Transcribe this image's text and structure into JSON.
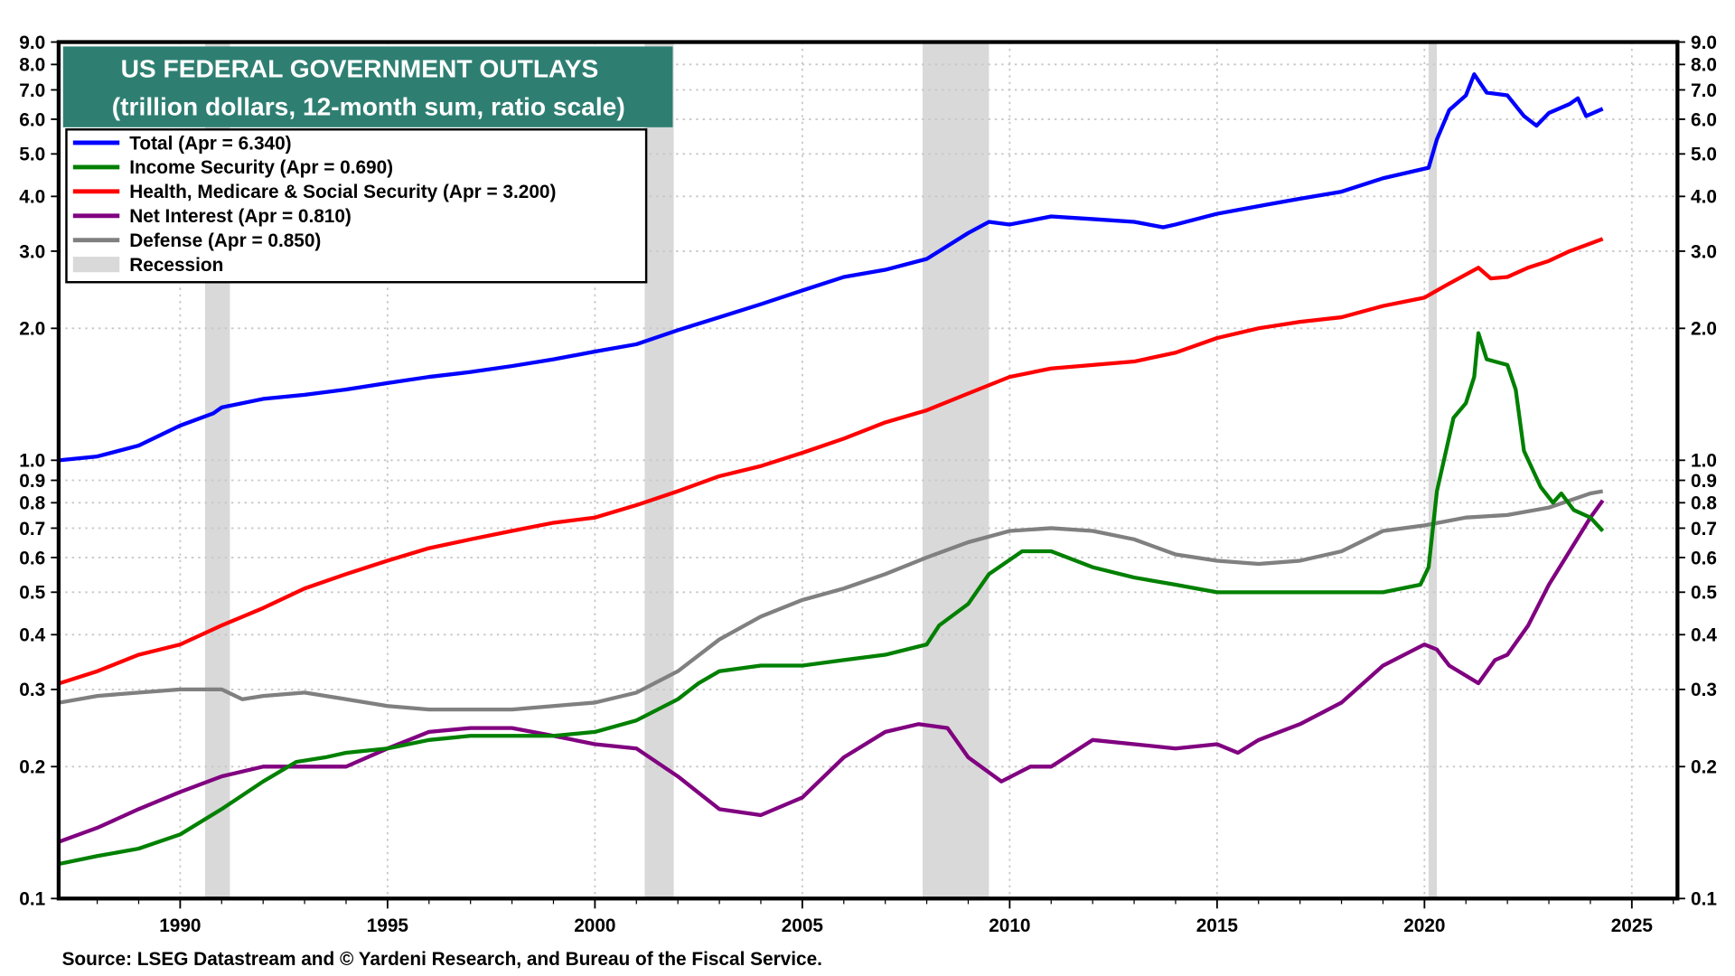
{
  "chart_data": {
    "type": "line",
    "title": "US FEDERAL GOVERNMENT OUTLAYS",
    "subtitle": "(trillion dollars, 12-month sum, ratio scale)",
    "source": "Source: LSEG Datastream and © Yardeni Research, and Bureau of the Fiscal Service.",
    "y_scale": "log",
    "ylim": [
      0.1,
      9.0
    ],
    "xlim": [
      1987.07,
      2026.1
    ],
    "grid": true,
    "legend_placement": "top-left",
    "y_ticks": [
      "9.0",
      "8.0",
      "7.0",
      "6.0",
      "5.0",
      "4.0",
      "3.0",
      "2.0",
      "1.0",
      "0.9",
      "0.8",
      "0.7",
      "0.6",
      "0.5",
      "0.4",
      "0.3",
      "0.2",
      "0.1"
    ],
    "y_tick_values": [
      9,
      8,
      7,
      6,
      5,
      4,
      3,
      2,
      1,
      0.9,
      0.8,
      0.7,
      0.6,
      0.5,
      0.4,
      0.3,
      0.2,
      0.1
    ],
    "x_ticks": [
      "1990",
      "1995",
      "2000",
      "2005",
      "2010",
      "2015",
      "2020",
      "2025"
    ],
    "x_tick_values": [
      1990,
      1995,
      2000,
      2005,
      2010,
      2015,
      2020,
      2025
    ],
    "recessions": [
      [
        1990.6,
        1991.2
      ],
      [
        2001.2,
        2001.9
      ],
      [
        2007.9,
        2009.5
      ],
      [
        2020.1,
        2020.3
      ]
    ],
    "recession_label": "Recession",
    "recession_color": "#d9d9d9",
    "series": [
      {
        "name": "Total  (Apr = 6.340)",
        "color": "#0000ff",
        "points": [
          [
            1987.1,
            1.0
          ],
          [
            1988,
            1.02
          ],
          [
            1989,
            1.08
          ],
          [
            1990,
            1.2
          ],
          [
            1990.8,
            1.28
          ],
          [
            1991,
            1.32
          ],
          [
            1992,
            1.38
          ],
          [
            1993,
            1.41
          ],
          [
            1994,
            1.45
          ],
          [
            1995,
            1.5
          ],
          [
            1996,
            1.55
          ],
          [
            1997,
            1.59
          ],
          [
            1998,
            1.64
          ],
          [
            1999,
            1.7
          ],
          [
            2000,
            1.77
          ],
          [
            2001,
            1.84
          ],
          [
            2002,
            1.98
          ],
          [
            2003,
            2.12
          ],
          [
            2004,
            2.27
          ],
          [
            2005,
            2.44
          ],
          [
            2006,
            2.62
          ],
          [
            2007,
            2.72
          ],
          [
            2008,
            2.88
          ],
          [
            2009,
            3.3
          ],
          [
            2009.5,
            3.5
          ],
          [
            2010,
            3.45
          ],
          [
            2011,
            3.6
          ],
          [
            2012,
            3.55
          ],
          [
            2013,
            3.5
          ],
          [
            2013.7,
            3.4
          ],
          [
            2014,
            3.45
          ],
          [
            2015,
            3.65
          ],
          [
            2016,
            3.8
          ],
          [
            2017,
            3.95
          ],
          [
            2018,
            4.1
          ],
          [
            2019,
            4.4
          ],
          [
            2020.1,
            4.65
          ],
          [
            2020.3,
            5.4
          ],
          [
            2020.6,
            6.3
          ],
          [
            2021.0,
            6.8
          ],
          [
            2021.2,
            7.6
          ],
          [
            2021.5,
            6.9
          ],
          [
            2022,
            6.8
          ],
          [
            2022.4,
            6.1
          ],
          [
            2022.7,
            5.8
          ],
          [
            2023,
            6.2
          ],
          [
            2023.5,
            6.5
          ],
          [
            2023.7,
            6.7
          ],
          [
            2023.9,
            6.1
          ],
          [
            2024.3,
            6.34
          ]
        ]
      },
      {
        "name": "Income Security (Apr = 0.690)",
        "color": "#008000",
        "points": [
          [
            1987.1,
            0.12
          ],
          [
            1988,
            0.125
          ],
          [
            1989,
            0.13
          ],
          [
            1990,
            0.14
          ],
          [
            1991,
            0.16
          ],
          [
            1992,
            0.185
          ],
          [
            1992.8,
            0.205
          ],
          [
            1993.5,
            0.21
          ],
          [
            1994,
            0.215
          ],
          [
            1995,
            0.22
          ],
          [
            1996,
            0.23
          ],
          [
            1997,
            0.235
          ],
          [
            1998,
            0.235
          ],
          [
            1999,
            0.235
          ],
          [
            2000,
            0.24
          ],
          [
            2001,
            0.255
          ],
          [
            2002,
            0.285
          ],
          [
            2002.5,
            0.31
          ],
          [
            2003,
            0.33
          ],
          [
            2004,
            0.34
          ],
          [
            2005,
            0.34
          ],
          [
            2006,
            0.35
          ],
          [
            2007,
            0.36
          ],
          [
            2008,
            0.38
          ],
          [
            2008.3,
            0.42
          ],
          [
            2009,
            0.47
          ],
          [
            2009.5,
            0.55
          ],
          [
            2010.3,
            0.62
          ],
          [
            2011,
            0.62
          ],
          [
            2012,
            0.57
          ],
          [
            2013,
            0.54
          ],
          [
            2014,
            0.52
          ],
          [
            2015,
            0.5
          ],
          [
            2016,
            0.5
          ],
          [
            2017,
            0.5
          ],
          [
            2018,
            0.5
          ],
          [
            2019,
            0.5
          ],
          [
            2019.9,
            0.52
          ],
          [
            2020.1,
            0.57
          ],
          [
            2020.3,
            0.85
          ],
          [
            2020.7,
            1.25
          ],
          [
            2021.0,
            1.35
          ],
          [
            2021.2,
            1.55
          ],
          [
            2021.3,
            1.95
          ],
          [
            2021.5,
            1.7
          ],
          [
            2022.0,
            1.65
          ],
          [
            2022.2,
            1.45
          ],
          [
            2022.4,
            1.05
          ],
          [
            2022.8,
            0.87
          ],
          [
            2023.1,
            0.8
          ],
          [
            2023.3,
            0.84
          ],
          [
            2023.6,
            0.77
          ],
          [
            2024.0,
            0.74
          ],
          [
            2024.3,
            0.69
          ]
        ]
      },
      {
        "name": "Health, Medicare & Social Security  (Apr = 3.200)",
        "color": "#ff0000",
        "points": [
          [
            1987.1,
            0.31
          ],
          [
            1988,
            0.33
          ],
          [
            1989,
            0.36
          ],
          [
            1990,
            0.38
          ],
          [
            1991,
            0.42
          ],
          [
            1992,
            0.46
          ],
          [
            1993,
            0.51
          ],
          [
            1994,
            0.55
          ],
          [
            1995,
            0.59
          ],
          [
            1996,
            0.63
          ],
          [
            1997,
            0.66
          ],
          [
            1998,
            0.69
          ],
          [
            1999,
            0.72
          ],
          [
            2000,
            0.74
          ],
          [
            2001,
            0.79
          ],
          [
            2002,
            0.85
          ],
          [
            2003,
            0.92
          ],
          [
            2004,
            0.97
          ],
          [
            2005,
            1.04
          ],
          [
            2006,
            1.12
          ],
          [
            2007,
            1.22
          ],
          [
            2008,
            1.3
          ],
          [
            2009,
            1.42
          ],
          [
            2010,
            1.55
          ],
          [
            2011,
            1.62
          ],
          [
            2012,
            1.65
          ],
          [
            2013,
            1.68
          ],
          [
            2014,
            1.76
          ],
          [
            2015,
            1.9
          ],
          [
            2016,
            2.0
          ],
          [
            2017,
            2.07
          ],
          [
            2018,
            2.12
          ],
          [
            2019,
            2.25
          ],
          [
            2020,
            2.35
          ],
          [
            2020.5,
            2.5
          ],
          [
            2021.3,
            2.75
          ],
          [
            2021.6,
            2.6
          ],
          [
            2022,
            2.62
          ],
          [
            2022.5,
            2.75
          ],
          [
            2023,
            2.85
          ],
          [
            2023.5,
            3.0
          ],
          [
            2024.3,
            3.2
          ]
        ]
      },
      {
        "name": "Net Interest (Apr = 0.810)",
        "color": "#800080",
        "points": [
          [
            1987.1,
            0.135
          ],
          [
            1988,
            0.145
          ],
          [
            1989,
            0.16
          ],
          [
            1990,
            0.175
          ],
          [
            1991,
            0.19
          ],
          [
            1992,
            0.2
          ],
          [
            1993,
            0.2
          ],
          [
            1994,
            0.2
          ],
          [
            1995,
            0.22
          ],
          [
            1996,
            0.24
          ],
          [
            1997,
            0.245
          ],
          [
            1998,
            0.245
          ],
          [
            1999,
            0.235
          ],
          [
            2000,
            0.225
          ],
          [
            2001,
            0.22
          ],
          [
            2002,
            0.19
          ],
          [
            2003,
            0.16
          ],
          [
            2004,
            0.155
          ],
          [
            2005,
            0.17
          ],
          [
            2006,
            0.21
          ],
          [
            2007,
            0.24
          ],
          [
            2007.8,
            0.25
          ],
          [
            2008.5,
            0.245
          ],
          [
            2009,
            0.21
          ],
          [
            2009.8,
            0.185
          ],
          [
            2010.5,
            0.2
          ],
          [
            2011,
            0.2
          ],
          [
            2012,
            0.23
          ],
          [
            2013,
            0.225
          ],
          [
            2014,
            0.22
          ],
          [
            2015,
            0.225
          ],
          [
            2015.5,
            0.215
          ],
          [
            2016,
            0.23
          ],
          [
            2017,
            0.25
          ],
          [
            2018,
            0.28
          ],
          [
            2019,
            0.34
          ],
          [
            2020,
            0.38
          ],
          [
            2020.3,
            0.37
          ],
          [
            2020.6,
            0.34
          ],
          [
            2021.3,
            0.31
          ],
          [
            2021.7,
            0.35
          ],
          [
            2022,
            0.36
          ],
          [
            2022.5,
            0.42
          ],
          [
            2023,
            0.52
          ],
          [
            2023.5,
            0.62
          ],
          [
            2024,
            0.74
          ],
          [
            2024.3,
            0.81
          ]
        ]
      },
      {
        "name": "Defense (Apr = 0.850)",
        "color": "#808080",
        "points": [
          [
            1987.1,
            0.28
          ],
          [
            1988,
            0.29
          ],
          [
            1989,
            0.295
          ],
          [
            1990,
            0.3
          ],
          [
            1991,
            0.3
          ],
          [
            1991.5,
            0.285
          ],
          [
            1992,
            0.29
          ],
          [
            1993,
            0.295
          ],
          [
            1994,
            0.285
          ],
          [
            1995,
            0.275
          ],
          [
            1996,
            0.27
          ],
          [
            1997,
            0.27
          ],
          [
            1998,
            0.27
          ],
          [
            1999,
            0.275
          ],
          [
            2000,
            0.28
          ],
          [
            2001,
            0.295
          ],
          [
            2002,
            0.33
          ],
          [
            2003,
            0.39
          ],
          [
            2004,
            0.44
          ],
          [
            2005,
            0.48
          ],
          [
            2006,
            0.51
          ],
          [
            2007,
            0.55
          ],
          [
            2008,
            0.6
          ],
          [
            2009,
            0.65
          ],
          [
            2010,
            0.69
          ],
          [
            2011,
            0.7
          ],
          [
            2012,
            0.69
          ],
          [
            2013,
            0.66
          ],
          [
            2014,
            0.61
          ],
          [
            2015,
            0.59
          ],
          [
            2016,
            0.58
          ],
          [
            2017,
            0.59
          ],
          [
            2018,
            0.62
          ],
          [
            2019,
            0.69
          ],
          [
            2020,
            0.71
          ],
          [
            2021,
            0.74
          ],
          [
            2022,
            0.75
          ],
          [
            2023,
            0.78
          ],
          [
            2024,
            0.84
          ],
          [
            2024.3,
            0.85
          ]
        ]
      }
    ]
  },
  "colors": {
    "title_bg": "#2e7f72",
    "title_text": "#ffffff"
  }
}
